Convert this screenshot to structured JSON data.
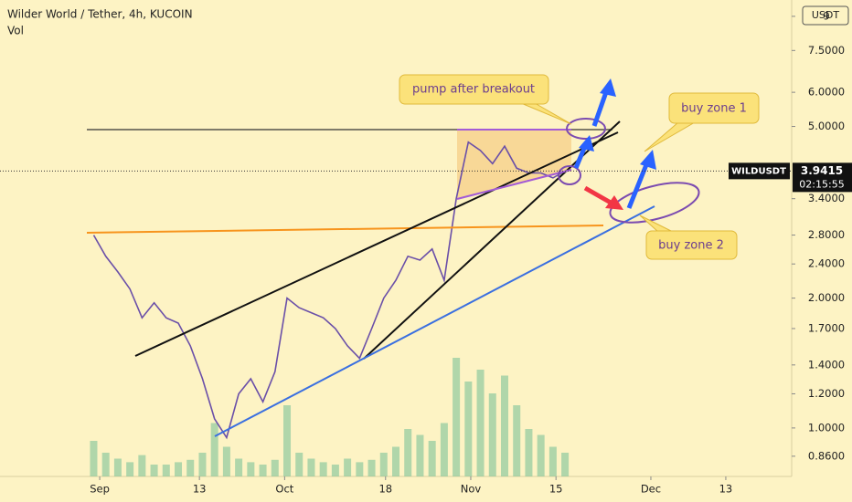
{
  "chart_data": {
    "type": "line",
    "title": "Wilder World / Tether, 4h, KUCOIN",
    "subtitle": "Vol",
    "currency": "USDT",
    "log_scale": true,
    "x": [
      -1,
      1,
      3,
      5,
      7,
      9,
      11,
      13,
      15,
      17,
      19,
      21,
      23,
      25,
      27,
      29,
      31,
      33,
      35,
      37,
      39,
      41,
      43,
      45,
      47,
      49,
      51,
      53,
      55,
      57,
      59,
      61,
      63,
      65,
      67,
      69,
      71,
      73,
      75,
      77
    ],
    "series": [
      {
        "name": "WILDUSDT",
        "color": "#6a4fa8",
        "values": [
          2.8,
          2.5,
          2.3,
          2.1,
          1.8,
          1.95,
          1.8,
          1.75,
          1.55,
          1.3,
          1.05,
          0.95,
          1.2,
          1.3,
          1.15,
          1.35,
          2.0,
          1.9,
          1.85,
          1.8,
          1.7,
          1.55,
          1.45,
          1.7,
          2.0,
          2.2,
          2.5,
          2.45,
          2.6,
          2.2,
          3.4,
          4.6,
          4.4,
          4.1,
          4.5,
          4.0,
          3.9,
          3.9,
          3.8,
          3.94
        ],
        "volume": [
          30,
          20,
          15,
          12,
          18,
          10,
          10,
          12,
          14,
          20,
          45,
          25,
          15,
          12,
          10,
          14,
          60,
          20,
          15,
          12,
          10,
          15,
          12,
          14,
          20,
          25,
          40,
          35,
          30,
          45,
          100,
          80,
          90,
          70,
          85,
          60,
          40,
          35,
          25,
          20
        ],
        "volume_color": "#8fc9a0"
      }
    ],
    "last_price": {
      "value": 3.9415,
      "label": "3.9415"
    },
    "countdown": "02:15:55",
    "xlim": [
      -16.5,
      114.5
    ],
    "xticks": [
      {
        "value": 0,
        "label": "Sep"
      },
      {
        "value": 16.5,
        "label": "13"
      },
      {
        "value": 30.6,
        "label": "Oct"
      },
      {
        "value": 47.3,
        "label": "18"
      },
      {
        "value": 61.4,
        "label": "Nov"
      },
      {
        "value": 75.5,
        "label": "15"
      },
      {
        "value": 91.2,
        "label": "Dec"
      },
      {
        "value": 103.6,
        "label": "13"
      }
    ],
    "ylim": [
      0.772,
      9.82
    ],
    "yticks": [
      {
        "value": 9,
        "label": "9"
      },
      {
        "value": 7.5,
        "label": "7.5000"
      },
      {
        "value": 6,
        "label": "6.0000"
      },
      {
        "value": 5,
        "label": "5.0000"
      },
      {
        "value": 3.4,
        "label": "3.4000"
      },
      {
        "value": 2.8,
        "label": "2.8000"
      },
      {
        "value": 2.4,
        "label": "2.4000"
      },
      {
        "value": 2,
        "label": "2.0000"
      },
      {
        "value": 1.7,
        "label": "1.7000"
      },
      {
        "value": 1.4,
        "label": "1.4000"
      },
      {
        "value": 1.2,
        "label": "1.2000"
      },
      {
        "value": 1,
        "label": "1.0000"
      },
      {
        "value": 0.86,
        "label": "0.8600"
      }
    ],
    "annotations": [
      "pump after breakout",
      "buy zone 1",
      "buy zone 2"
    ]
  }
}
